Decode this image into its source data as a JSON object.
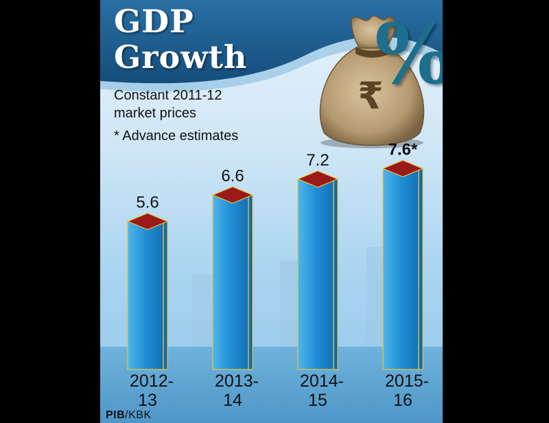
{
  "title_line1": "GDP",
  "title_line2": "Growth",
  "subtitle_line1": "Constant 2011-12",
  "subtitle_line2": "market prices",
  "note": "* Advance estimates",
  "source_bold": "PIB",
  "source_rest": "/KBK",
  "bag_symbol": "₹",
  "percent_symbol": "%",
  "colors": {
    "bar_face": "#1f8fd6",
    "bar_top": "#9a1a1a",
    "header": "#1a5a8a",
    "bag": "#b59a70"
  },
  "chart_data": {
    "type": "bar",
    "title": "GDP Growth",
    "categories": [
      [
        "2012-",
        "13"
      ],
      [
        "2013-",
        "14"
      ],
      [
        "2014-",
        "15"
      ],
      [
        "2015-",
        "16"
      ]
    ],
    "values": [
      5.6,
      6.6,
      7.2,
      7.6
    ],
    "value_labels": [
      "5.6",
      "6.6",
      "7.2",
      "7.6*"
    ],
    "label_bold": [
      false,
      false,
      false,
      true
    ],
    "ylim": [
      0,
      8
    ],
    "grid": false,
    "legend": "none"
  }
}
